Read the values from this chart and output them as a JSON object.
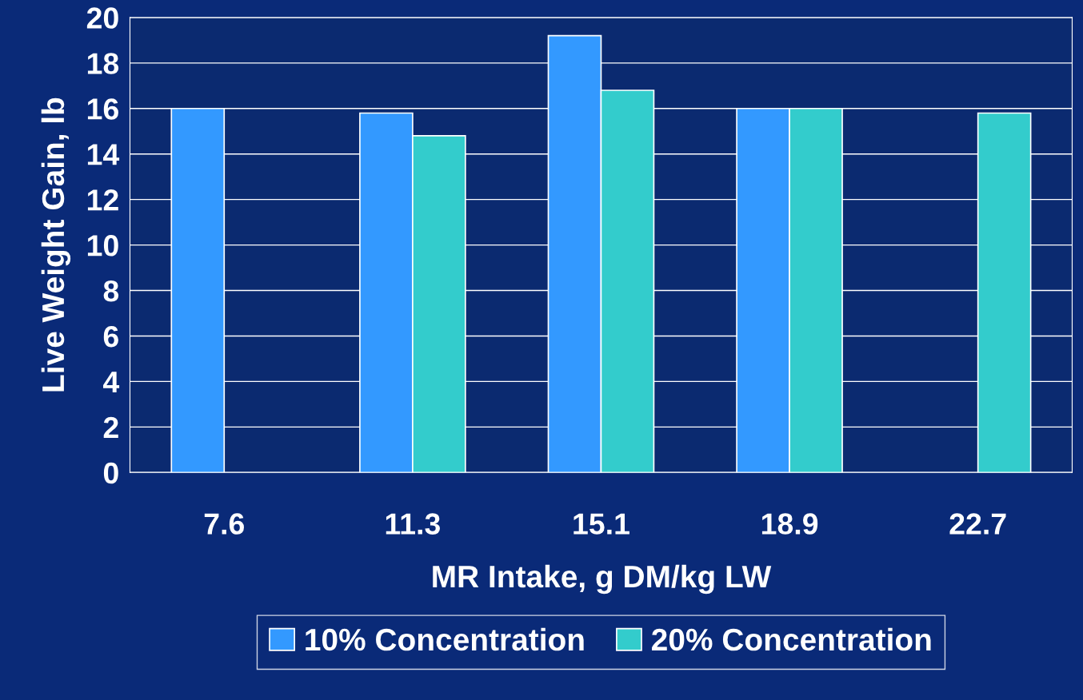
{
  "chart_data": {
    "type": "bar",
    "xlabel": "MR Intake, g DM/kg LW",
    "ylabel": "Live Weight Gain, lb",
    "categories": [
      "7.6",
      "11.3",
      "15.1",
      "18.9",
      "22.7"
    ],
    "series": [
      {
        "name": "10% Concentration",
        "color": "#3399ff",
        "values": [
          16,
          15.8,
          19.2,
          16,
          null
        ]
      },
      {
        "name": "20% Concentration",
        "color": "#33cccc",
        "values": [
          null,
          14.8,
          16.8,
          16,
          15.8
        ]
      }
    ],
    "ylim": [
      0,
      20
    ],
    "yticks": [
      0,
      2,
      4,
      6,
      8,
      10,
      12,
      14,
      16,
      18,
      20
    ],
    "grid": "y",
    "legend": "bottom"
  }
}
